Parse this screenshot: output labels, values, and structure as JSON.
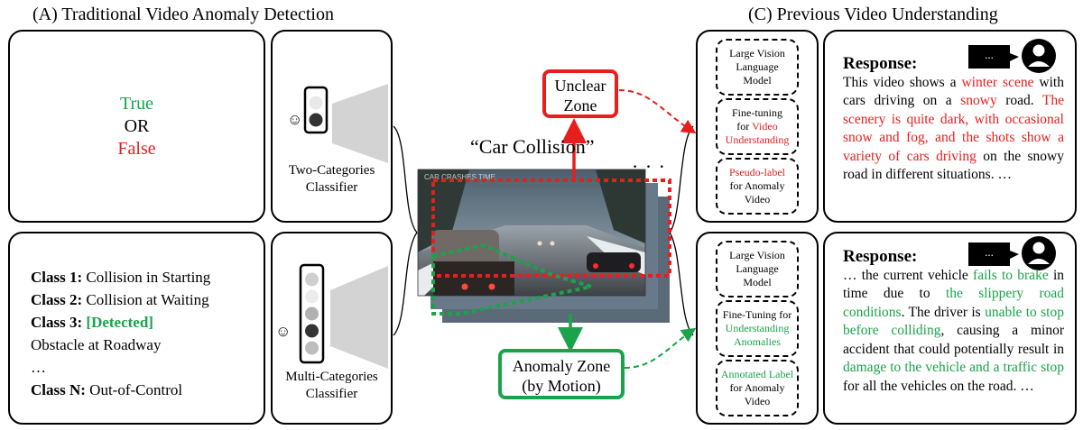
{
  "headers": {
    "a": "(A) Traditional Video Anomaly Detection",
    "c": "(C) Previous Video Understanding"
  },
  "binary": {
    "true_label": "True",
    "or_label": "OR",
    "false_label": "False"
  },
  "classifiers": {
    "two": [
      "Two-Categories",
      "Classifier"
    ],
    "multi": [
      "Multi-Categories",
      "Classifier"
    ],
    "smiley": "☺"
  },
  "classes": {
    "c1_key": "Class 1:",
    "c1_val": " Collision in Starting",
    "c2_key": "Class 2:",
    "c2_val": " Collision at Waiting",
    "c3_key": "Class 3:",
    "c3_val": " [Detected]",
    "line4": "Obstacle at Roadway",
    "ellipsis": "…",
    "cn_key": "Class N:",
    "cn_val": " Out-of-Control"
  },
  "center": {
    "caption": "“Car Collision”",
    "unclear": [
      "Unclear",
      "Zone"
    ],
    "anomaly": [
      "Anomaly Zone",
      "(by Motion)"
    ],
    "dots": "· · ·",
    "frame_text": "CAR CRASHES TIME"
  },
  "pipeline_top": {
    "b1": [
      "Large Vision",
      "Language",
      "Model"
    ],
    "b2_plain": [
      "Fine-tuning",
      "for"
    ],
    "b2_colored": [
      "Video",
      "Understanding"
    ],
    "b3_colored": "Pseudo-label",
    "b3_plain": [
      "for Anomaly",
      "Video"
    ]
  },
  "pipeline_bottom": {
    "b1": [
      "Large Vision",
      "Language",
      "Model"
    ],
    "b2_plain": "Fine-Tuning for",
    "b2_colored": [
      "Understanding",
      "Anomalies"
    ],
    "b3_colored": "Annotated Label",
    "b3_plain": [
      "for Anomaly",
      "Video"
    ]
  },
  "response_top": {
    "title": "Response:",
    "bubble": "...",
    "t1": "This video shows a ",
    "r1": "winter scene",
    "t2": " with cars driving on a ",
    "r2": "snowy",
    "t3": " road. ",
    "r3": "The scenery is quite dark, with occasional snow and fog, and the shots show a variety of cars driving",
    "t4": " on the snowy road in different situations. …"
  },
  "response_bottom": {
    "title": "Response:",
    "bubble": "...",
    "t1": "… the current vehicle ",
    "g1": "fails to brake",
    "t2": " in time due to ",
    "g2": "the slippery road conditions",
    "t3": ". The driver is ",
    "g3": "unable to stop before colliding",
    "t4": ", causing a minor accident that could potentially result in ",
    "g4": "damage to the vehicle and a traffic stop",
    "t5": " for all the vehicles on the road. …"
  }
}
